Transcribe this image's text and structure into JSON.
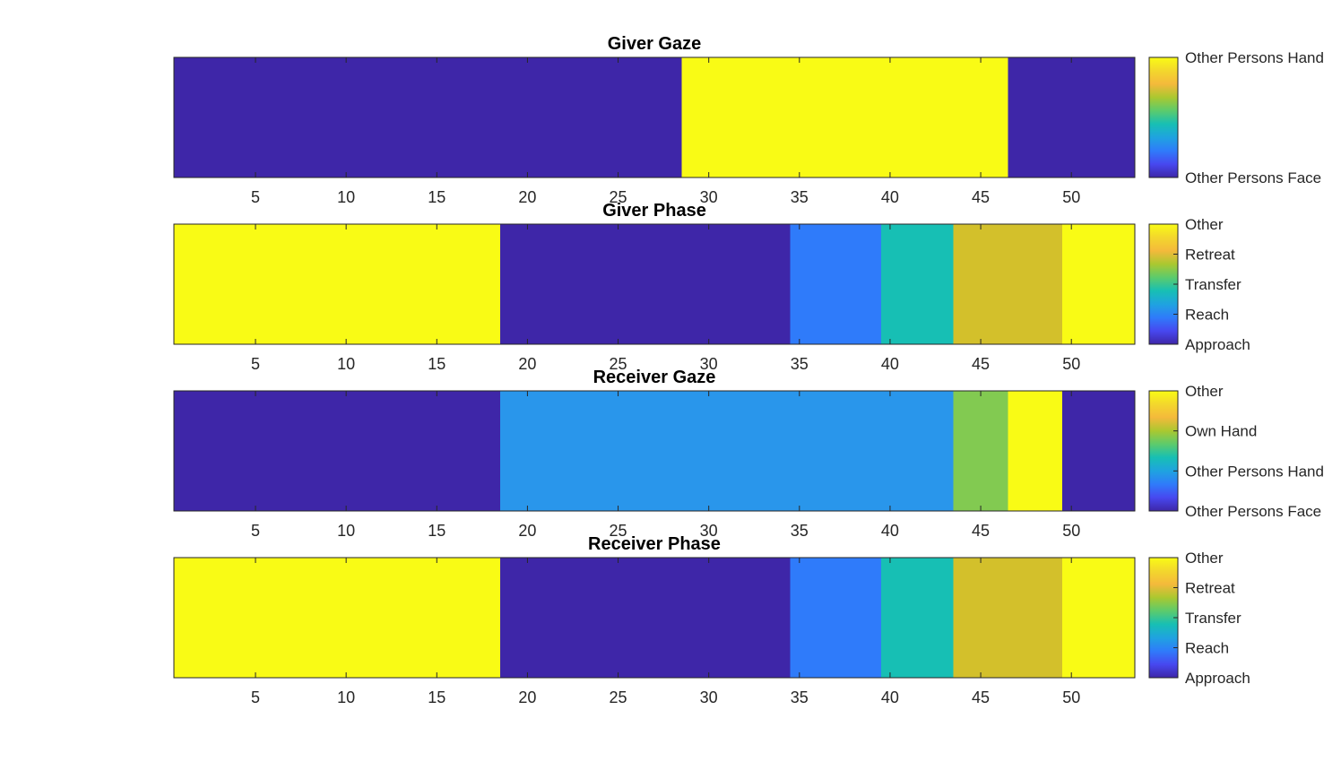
{
  "chart_data": [
    {
      "type": "heatmap",
      "title": "Giver Gaze",
      "xlabel": "",
      "ylabel": "",
      "xlim": [
        0.5,
        53.5
      ],
      "xticks": [
        5,
        10,
        15,
        20,
        25,
        30,
        35,
        40,
        45,
        50
      ],
      "colorbar_labels": [
        "Other Persons Face",
        "Other Persons Hand"
      ],
      "segments": [
        {
          "start": 1,
          "end": 28,
          "category": "Other Persons Face",
          "color": "#3e26a8"
        },
        {
          "start": 29,
          "end": 46,
          "category": "Other Persons Hand",
          "color": "#f9fb15"
        },
        {
          "start": 47,
          "end": 53,
          "category": "Other Persons Face",
          "color": "#3e26a8"
        }
      ]
    },
    {
      "type": "heatmap",
      "title": "Giver Phase",
      "xlabel": "",
      "ylabel": "",
      "xlim": [
        0.5,
        53.5
      ],
      "xticks": [
        5,
        10,
        15,
        20,
        25,
        30,
        35,
        40,
        45,
        50
      ],
      "colorbar_labels": [
        "Approach",
        "Reach",
        "Transfer",
        "Retreat",
        "Other"
      ],
      "segments": [
        {
          "start": 1,
          "end": 18,
          "category": "Other",
          "color": "#f9fb15"
        },
        {
          "start": 19,
          "end": 34,
          "category": "Approach",
          "color": "#3e26a8"
        },
        {
          "start": 35,
          "end": 39,
          "category": "Reach",
          "color": "#2f7bfa"
        },
        {
          "start": 40,
          "end": 43,
          "category": "Transfer",
          "color": "#17bfb4"
        },
        {
          "start": 44,
          "end": 49,
          "category": "Retreat",
          "color": "#d3c02b"
        },
        {
          "start": 50,
          "end": 53,
          "category": "Other",
          "color": "#f9fb15"
        }
      ]
    },
    {
      "type": "heatmap",
      "title": "Receiver Gaze",
      "xlabel": "",
      "ylabel": "",
      "xlim": [
        0.5,
        53.5
      ],
      "xticks": [
        5,
        10,
        15,
        20,
        25,
        30,
        35,
        40,
        45,
        50
      ],
      "colorbar_labels": [
        "Other Persons Face",
        "Other Persons Hand",
        "Own Hand",
        "Other"
      ],
      "segments": [
        {
          "start": 1,
          "end": 18,
          "category": "Other Persons Face",
          "color": "#3e26a8"
        },
        {
          "start": 19,
          "end": 43,
          "category": "Other Persons Hand",
          "color": "#2996eb"
        },
        {
          "start": 44,
          "end": 46,
          "category": "Own Hand",
          "color": "#82ca51"
        },
        {
          "start": 47,
          "end": 49,
          "category": "Other",
          "color": "#f9fb15"
        },
        {
          "start": 50,
          "end": 53,
          "category": "Other Persons Face",
          "color": "#3e26a8"
        }
      ]
    },
    {
      "type": "heatmap",
      "title": "Receiver Phase",
      "xlabel": "",
      "ylabel": "",
      "xlim": [
        0.5,
        53.5
      ],
      "xticks": [
        5,
        10,
        15,
        20,
        25,
        30,
        35,
        40,
        45,
        50
      ],
      "colorbar_labels": [
        "Approach",
        "Reach",
        "Transfer",
        "Retreat",
        "Other"
      ],
      "segments": [
        {
          "start": 1,
          "end": 18,
          "category": "Other",
          "color": "#f9fb15"
        },
        {
          "start": 19,
          "end": 34,
          "category": "Approach",
          "color": "#3e26a8"
        },
        {
          "start": 35,
          "end": 39,
          "category": "Reach",
          "color": "#2f7bfa"
        },
        {
          "start": 40,
          "end": 43,
          "category": "Transfer",
          "color": "#17bfb4"
        },
        {
          "start": 44,
          "end": 49,
          "category": "Retreat",
          "color": "#d3c02b"
        },
        {
          "start": 50,
          "end": 53,
          "category": "Other",
          "color": "#f9fb15"
        }
      ]
    }
  ],
  "colormap": "parula",
  "colormap_stops": [
    "#3e26a8",
    "#4748f0",
    "#2f7bfa",
    "#1fa3e0",
    "#17bfb4",
    "#5ccb6c",
    "#aac830",
    "#f4b93b",
    "#f3d72c",
    "#f9fb15"
  ]
}
